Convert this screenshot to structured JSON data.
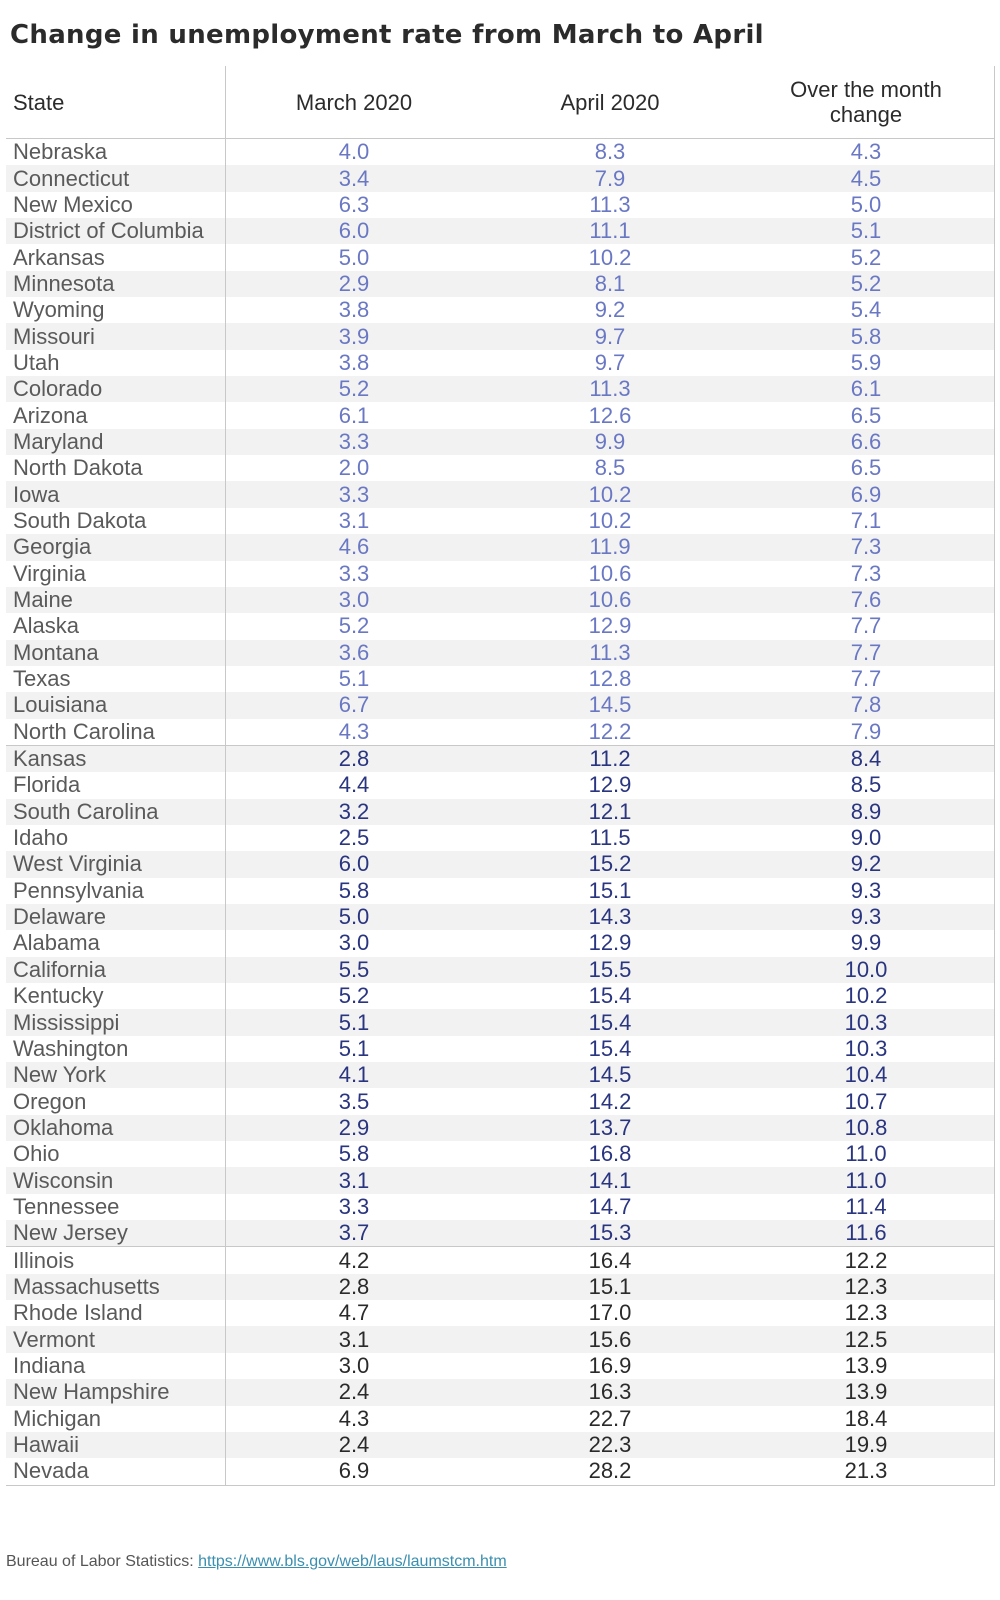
{
  "title": "Change in unemployment rate from March to April",
  "table": {
    "headers": [
      "State",
      "March 2020",
      "April 2020",
      "Over the month change"
    ],
    "group_colors": {
      "g1": "#6a78c4",
      "g2": "#2a3580",
      "g3": "#2a2a2a"
    },
    "rows": [
      {
        "state": "Nebraska",
        "march": "4.0",
        "april": "8.3",
        "change": "4.3",
        "group": "g1"
      },
      {
        "state": "Connecticut",
        "march": "3.4",
        "april": "7.9",
        "change": "4.5",
        "group": "g1"
      },
      {
        "state": "New Mexico",
        "march": "6.3",
        "april": "11.3",
        "change": "5.0",
        "group": "g1"
      },
      {
        "state": "District of Columbia",
        "march": "6.0",
        "april": "11.1",
        "change": "5.1",
        "group": "g1"
      },
      {
        "state": "Arkansas",
        "march": "5.0",
        "april": "10.2",
        "change": "5.2",
        "group": "g1"
      },
      {
        "state": "Minnesota",
        "march": "2.9",
        "april": "8.1",
        "change": "5.2",
        "group": "g1"
      },
      {
        "state": "Wyoming",
        "march": "3.8",
        "april": "9.2",
        "change": "5.4",
        "group": "g1"
      },
      {
        "state": "Missouri",
        "march": "3.9",
        "april": "9.7",
        "change": "5.8",
        "group": "g1"
      },
      {
        "state": "Utah",
        "march": "3.8",
        "april": "9.7",
        "change": "5.9",
        "group": "g1"
      },
      {
        "state": "Colorado",
        "march": "5.2",
        "april": "11.3",
        "change": "6.1",
        "group": "g1"
      },
      {
        "state": "Arizona",
        "march": "6.1",
        "april": "12.6",
        "change": "6.5",
        "group": "g1"
      },
      {
        "state": "Maryland",
        "march": "3.3",
        "april": "9.9",
        "change": "6.6",
        "group": "g1"
      },
      {
        "state": "North Dakota",
        "march": "2.0",
        "april": "8.5",
        "change": "6.5",
        "group": "g1"
      },
      {
        "state": "Iowa",
        "march": "3.3",
        "april": "10.2",
        "change": "6.9",
        "group": "g1"
      },
      {
        "state": "South Dakota",
        "march": "3.1",
        "april": "10.2",
        "change": "7.1",
        "group": "g1"
      },
      {
        "state": "Georgia",
        "march": "4.6",
        "april": "11.9",
        "change": "7.3",
        "group": "g1"
      },
      {
        "state": "Virginia",
        "march": "3.3",
        "april": "10.6",
        "change": "7.3",
        "group": "g1"
      },
      {
        "state": "Maine",
        "march": "3.0",
        "april": "10.6",
        "change": "7.6",
        "group": "g1"
      },
      {
        "state": "Alaska",
        "march": "5.2",
        "april": "12.9",
        "change": "7.7",
        "group": "g1"
      },
      {
        "state": "Montana",
        "march": "3.6",
        "april": "11.3",
        "change": "7.7",
        "group": "g1"
      },
      {
        "state": "Texas",
        "march": "5.1",
        "april": "12.8",
        "change": "7.7",
        "group": "g1"
      },
      {
        "state": "Louisiana",
        "march": "6.7",
        "april": "14.5",
        "change": "7.8",
        "group": "g1"
      },
      {
        "state": "North Carolina",
        "march": "4.3",
        "april": "12.2",
        "change": "7.9",
        "group": "g1"
      },
      {
        "state": "Kansas",
        "march": "2.8",
        "april": "11.2",
        "change": "8.4",
        "group": "g2"
      },
      {
        "state": "Florida",
        "march": "4.4",
        "april": "12.9",
        "change": "8.5",
        "group": "g2"
      },
      {
        "state": "South Carolina",
        "march": "3.2",
        "april": "12.1",
        "change": "8.9",
        "group": "g2"
      },
      {
        "state": "Idaho",
        "march": "2.5",
        "april": "11.5",
        "change": "9.0",
        "group": "g2"
      },
      {
        "state": "West Virginia",
        "march": "6.0",
        "april": "15.2",
        "change": "9.2",
        "group": "g2"
      },
      {
        "state": "Pennsylvania",
        "march": "5.8",
        "april": "15.1",
        "change": "9.3",
        "group": "g2"
      },
      {
        "state": "Delaware",
        "march": "5.0",
        "april": "14.3",
        "change": "9.3",
        "group": "g2"
      },
      {
        "state": "Alabama",
        "march": "3.0",
        "april": "12.9",
        "change": "9.9",
        "group": "g2"
      },
      {
        "state": "California",
        "march": "5.5",
        "april": "15.5",
        "change": "10.0",
        "group": "g2"
      },
      {
        "state": "Kentucky",
        "march": "5.2",
        "april": "15.4",
        "change": "10.2",
        "group": "g2"
      },
      {
        "state": "Mississippi",
        "march": "5.1",
        "april": "15.4",
        "change": "10.3",
        "group": "g2"
      },
      {
        "state": "Washington",
        "march": "5.1",
        "april": "15.4",
        "change": "10.3",
        "group": "g2"
      },
      {
        "state": "New York",
        "march": "4.1",
        "april": "14.5",
        "change": "10.4",
        "group": "g2"
      },
      {
        "state": "Oregon",
        "march": "3.5",
        "april": "14.2",
        "change": "10.7",
        "group": "g2"
      },
      {
        "state": "Oklahoma",
        "march": "2.9",
        "april": "13.7",
        "change": "10.8",
        "group": "g2"
      },
      {
        "state": "Ohio",
        "march": "5.8",
        "april": "16.8",
        "change": "11.0",
        "group": "g2"
      },
      {
        "state": "Wisconsin",
        "march": "3.1",
        "april": "14.1",
        "change": "11.0",
        "group": "g2"
      },
      {
        "state": "Tennessee",
        "march": "3.3",
        "april": "14.7",
        "change": "11.4",
        "group": "g2"
      },
      {
        "state": "New Jersey",
        "march": "3.7",
        "april": "15.3",
        "change": "11.6",
        "group": "g2"
      },
      {
        "state": "Illinois",
        "march": "4.2",
        "april": "16.4",
        "change": "12.2",
        "group": "g3"
      },
      {
        "state": "Massachusetts",
        "march": "2.8",
        "april": "15.1",
        "change": "12.3",
        "group": "g3"
      },
      {
        "state": "Rhode Island",
        "march": "4.7",
        "april": "17.0",
        "change": "12.3",
        "group": "g3"
      },
      {
        "state": "Vermont",
        "march": "3.1",
        "april": "15.6",
        "change": "12.5",
        "group": "g3"
      },
      {
        "state": "Indiana",
        "march": "3.0",
        "april": "16.9",
        "change": "13.9",
        "group": "g3"
      },
      {
        "state": "New Hampshire",
        "march": "2.4",
        "april": "16.3",
        "change": "13.9",
        "group": "g3"
      },
      {
        "state": "Michigan",
        "march": "4.3",
        "april": "22.7",
        "change": "18.4",
        "group": "g3"
      },
      {
        "state": "Hawaii",
        "march": "2.4",
        "april": "22.3",
        "change": "19.9",
        "group": "g3"
      },
      {
        "state": "Nevada",
        "march": "6.9",
        "april": "28.2",
        "change": "21.3",
        "group": "g3"
      }
    ]
  },
  "footer": {
    "source_label": "Bureau of Labor Statistics: ",
    "link_text": "https://www.bls.gov/web/laus/laumstcm.htm"
  }
}
